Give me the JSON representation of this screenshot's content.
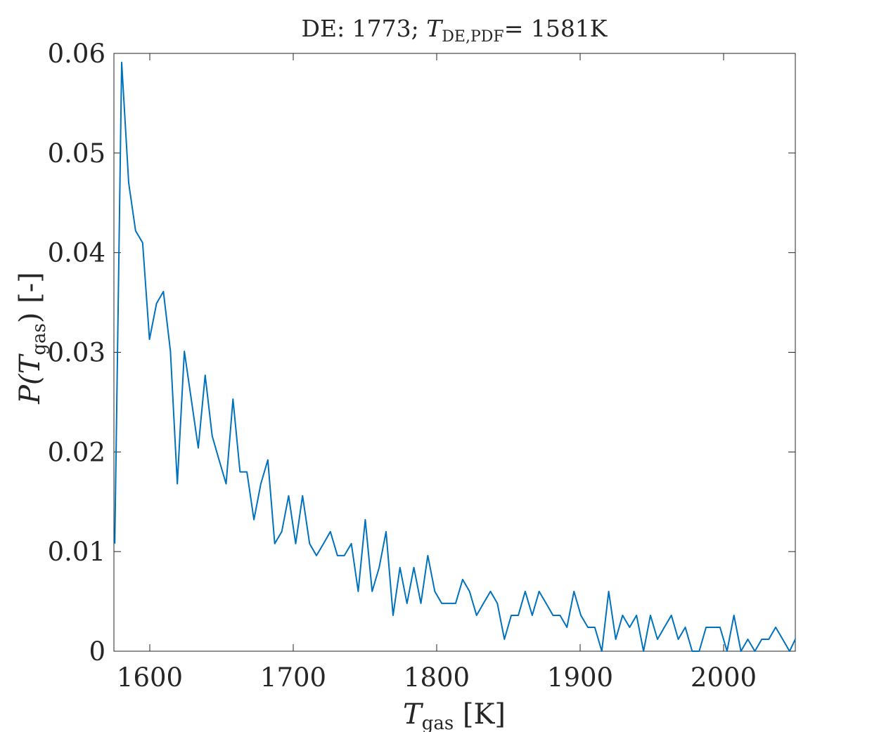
{
  "chart_data": {
    "type": "line",
    "title_parts": {
      "prefix": "DE: 1773; ",
      "symbol": "T",
      "subscript": "DE,PDF",
      "suffix": "= 1581K"
    },
    "xlabel_parts": {
      "symbol": "T",
      "subscript": "gas",
      "unit": " [K]"
    },
    "ylabel_parts": {
      "prefix": "P(",
      "symbol": "T",
      "subscript": "gas",
      "suffix": ") [-]"
    },
    "xlim": [
      1575,
      2050
    ],
    "ylim": [
      0,
      0.06
    ],
    "xticks": [
      1600,
      1700,
      1800,
      1900,
      2000
    ],
    "xtick_labels": [
      "1600",
      "1700",
      "1800",
      "1900",
      "2000"
    ],
    "yticks": [
      0,
      0.01,
      0.02,
      0.03,
      0.04,
      0.05,
      0.06
    ],
    "ytick_labels": [
      "0",
      "0.01",
      "0.02",
      "0.03",
      "0.04",
      "0.05",
      "0.06"
    ],
    "grid": false,
    "series_color": "#0072BD",
    "x": [
      1575.6,
      1580.4,
      1585.3,
      1590.1,
      1595.0,
      1599.8,
      1604.7,
      1609.5,
      1614.4,
      1619.2,
      1624.1,
      1628.9,
      1633.8,
      1638.6,
      1643.5,
      1648.3,
      1653.2,
      1658.0,
      1662.9,
      1667.7,
      1672.6,
      1677.4,
      1682.3,
      1687.1,
      1692.0,
      1696.8,
      1701.7,
      1706.5,
      1711.4,
      1716.2,
      1721.1,
      1725.9,
      1730.8,
      1735.6,
      1740.5,
      1745.3,
      1750.2,
      1755.0,
      1759.9,
      1764.7,
      1769.6,
      1774.4,
      1779.3,
      1784.1,
      1789.0,
      1793.8,
      1798.7,
      1803.5,
      1808.4,
      1813.2,
      1818.1,
      1822.9,
      1827.8,
      1832.6,
      1837.5,
      1842.3,
      1847.2,
      1852.0,
      1856.9,
      1861.7,
      1866.6,
      1871.4,
      1876.3,
      1881.1,
      1886.0,
      1890.8,
      1895.7,
      1900.5,
      1905.4,
      1910.2,
      1915.1,
      1919.9,
      1924.8,
      1929.6,
      1934.5,
      1939.3,
      1944.2,
      1949.0,
      1953.9,
      1958.7,
      1963.6,
      1968.4,
      1973.3,
      1978.1,
      1983.0,
      1987.8,
      1992.7,
      1997.5,
      2002.4,
      2007.2,
      2012.1,
      2016.9,
      2021.8,
      2026.6,
      2031.5,
      2036.3,
      2041.2,
      2046.0,
      2050.0
    ],
    "y": [
      0.0108,
      0.0591,
      0.047,
      0.0422,
      0.041,
      0.0313,
      0.0349,
      0.0361,
      0.0301,
      0.0168,
      0.0301,
      0.0253,
      0.0204,
      0.0277,
      0.0216,
      0.0192,
      0.0168,
      0.0253,
      0.018,
      0.018,
      0.0132,
      0.0168,
      0.0192,
      0.0108,
      0.012,
      0.0156,
      0.0108,
      0.0156,
      0.0108,
      0.0096,
      0.0108,
      0.012,
      0.0096,
      0.0096,
      0.0108,
      0.006,
      0.0132,
      0.006,
      0.0084,
      0.012,
      0.0036,
      0.0084,
      0.0048,
      0.0084,
      0.0048,
      0.0096,
      0.006,
      0.0048,
      0.0048,
      0.0048,
      0.0072,
      0.006,
      0.0036,
      0.0048,
      0.006,
      0.0048,
      0.0012,
      0.0036,
      0.0036,
      0.006,
      0.0036,
      0.006,
      0.0048,
      0.0036,
      0.0036,
      0.0024,
      0.006,
      0.0036,
      0.0024,
      0.0024,
      0.0,
      0.006,
      0.0012,
      0.0036,
      0.0024,
      0.0036,
      0.0,
      0.0036,
      0.0012,
      0.0024,
      0.0036,
      0.0012,
      0.0024,
      0.0,
      0.0,
      0.0024,
      0.0024,
      0.0024,
      0.0,
      0.0036,
      0.0,
      0.0012,
      0.0,
      0.0012,
      0.0012,
      0.0024,
      0.0012,
      0.0,
      0.0012
    ]
  }
}
